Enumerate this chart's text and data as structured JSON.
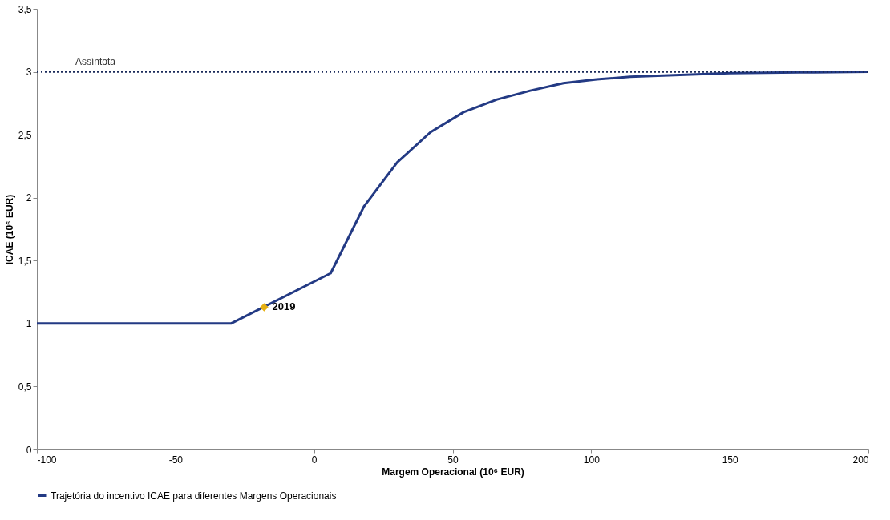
{
  "chart_data": {
    "type": "line",
    "xlabel": "Margem Operacional (10⁶ EUR)",
    "ylabel": "ICAE (10⁶ EUR)",
    "xlim": [
      -100,
      200
    ],
    "xticks": [
      -100,
      -50,
      0,
      50,
      100,
      150,
      200
    ],
    "ylim": [
      0,
      3.5
    ],
    "yticks": [
      0,
      {
        "value": 0.5,
        "label": "0,5"
      },
      1,
      {
        "value": 1.5,
        "label": "1,5"
      },
      2,
      {
        "value": 2.5,
        "label": "2,5"
      },
      3,
      {
        "value": 3.5,
        "label": "3,5"
      }
    ],
    "grid": false,
    "legend": "bottom",
    "marker": "none",
    "line_style": "solid",
    "series": [
      {
        "name": "Trajetória do incentivo ICAE para diferentes Margens Operacionais",
        "color": "#233a84",
        "x": [
          -100,
          -30,
          6,
          18,
          30,
          42,
          54,
          66,
          78,
          90,
          102,
          114,
          126,
          138,
          150,
          175,
          200
        ],
        "values": [
          1,
          1,
          1.4,
          1.93,
          2.28,
          2.52,
          2.68,
          2.78,
          2.85,
          2.91,
          2.94,
          2.96,
          2.97,
          2.98,
          2.99,
          2.995,
          3
        ]
      },
      {
        "color": "#e6b012",
        "type": "scatter",
        "marker": "diamond",
        "x": [
          -18
        ],
        "values": [
          1.13
        ]
      }
    ],
    "ref_lines": [
      {
        "axis": "y",
        "value": 3,
        "label": "Assíntota",
        "color": "#1a2a5a",
        "line_style": "dotted"
      }
    ],
    "annotations": [
      {
        "text": "2019",
        "x": -18,
        "y": 1.13
      }
    ]
  }
}
